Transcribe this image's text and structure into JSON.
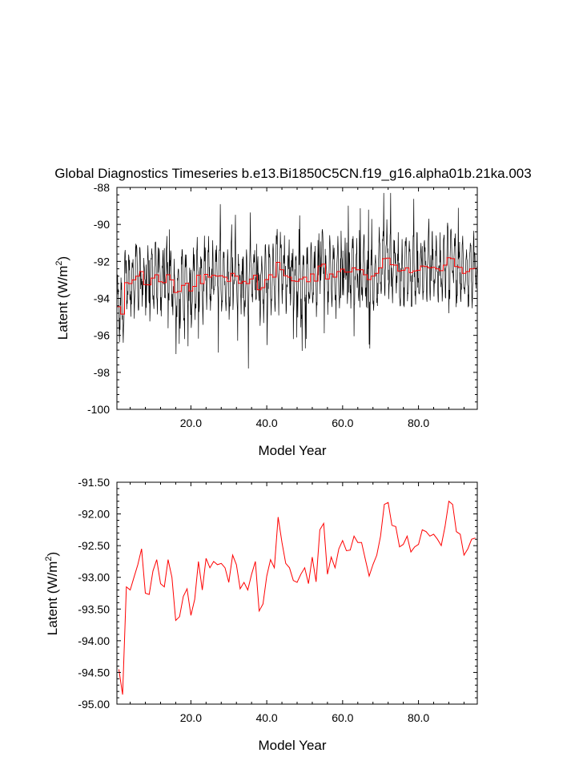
{
  "title": "Global Diagnostics Timeseries b.e13.Bi1850C5CN.f19_g16.alpha01b.21ka.003",
  "colors": {
    "monthly": "#000000",
    "annual": "#ff0000",
    "axes": "#000000"
  },
  "chart_data": [
    {
      "type": "line",
      "name": "monthly-and-annual",
      "title": "Global Diagnostics Timeseries b.e13.Bi1850C5CN.f19_g16.alpha01b.21ka.003",
      "xlabel": "Model Year",
      "ylabel_main": "Latent (W/m",
      "ylabel_sup": "2",
      "ylabel_end": ")",
      "xlim": [
        0.5,
        95.5
      ],
      "ylim": [
        -100,
        -88
      ],
      "xticks": [
        20,
        40,
        60,
        80
      ],
      "xtick_labels": [
        "20.0",
        "40.0",
        "60.0",
        "80.0"
      ],
      "yticks": [
        -88,
        -90,
        -92,
        -94,
        -96,
        -98,
        -100
      ],
      "ytick_labels": [
        "-88",
        "-90",
        "-92",
        "-94",
        "-96",
        "-98",
        "-100"
      ],
      "series": [
        {
          "name": "monthly",
          "color": "#000000",
          "note": "dense monthly oscillation, range approx -98.5 to -88.3, annual envelope amplitude ~1.4"
        },
        {
          "name": "annual",
          "color": "#ff0000"
        }
      ]
    },
    {
      "type": "line",
      "name": "annual-mean",
      "xlabel": "Model Year",
      "ylabel_main": "Latent (W/m",
      "ylabel_sup": "2",
      "ylabel_end": ")",
      "xlim": [
        0.5,
        95.5
      ],
      "ylim": [
        -95.0,
        -91.5
      ],
      "xticks": [
        20,
        40,
        60,
        80
      ],
      "xtick_labels": [
        "20.0",
        "40.0",
        "60.0",
        "80.0"
      ],
      "yticks": [
        -91.5,
        -92.0,
        -92.5,
        -93.0,
        -93.5,
        -94.0,
        -94.5,
        -95.0
      ],
      "ytick_labels": [
        "-91.50",
        "-92.00",
        "-92.50",
        "-93.00",
        "-93.50",
        "-94.00",
        "-94.50",
        "-95.00"
      ],
      "series": [
        {
          "name": "annual",
          "color": "#ff0000",
          "x": [
            1,
            2,
            3,
            4,
            5,
            6,
            7,
            8,
            9,
            10,
            11,
            12,
            13,
            14,
            15,
            16,
            17,
            18,
            19,
            20,
            21,
            22,
            23,
            24,
            25,
            26,
            27,
            28,
            29,
            30,
            31,
            32,
            33,
            34,
            35,
            36,
            37,
            38,
            39,
            40,
            41,
            42,
            43,
            44,
            45,
            46,
            47,
            48,
            49,
            50,
            51,
            52,
            53,
            54,
            55,
            56,
            57,
            58,
            59,
            60,
            61,
            62,
            63,
            64,
            65,
            66,
            67,
            68,
            69,
            70,
            71,
            72,
            73,
            74,
            75,
            76,
            77,
            78,
            79,
            80,
            81,
            82,
            83,
            84,
            85,
            86,
            87,
            88,
            89,
            90,
            91,
            92,
            93,
            94,
            95
          ],
          "values": [
            -94.45,
            -94.85,
            -93.15,
            -93.2,
            -93.0,
            -92.8,
            -92.55,
            -93.25,
            -93.27,
            -92.9,
            -92.72,
            -93.1,
            -93.15,
            -92.72,
            -93.0,
            -93.68,
            -93.62,
            -93.3,
            -93.18,
            -93.6,
            -93.35,
            -92.75,
            -93.2,
            -92.7,
            -92.85,
            -92.75,
            -92.8,
            -92.78,
            -92.85,
            -93.08,
            -92.65,
            -92.8,
            -93.18,
            -93.08,
            -93.2,
            -92.95,
            -92.75,
            -93.53,
            -93.42,
            -92.98,
            -92.72,
            -92.85,
            -92.05,
            -92.45,
            -92.78,
            -92.85,
            -93.05,
            -93.08,
            -92.95,
            -92.85,
            -93.1,
            -92.68,
            -93.07,
            -92.25,
            -92.15,
            -92.95,
            -92.68,
            -92.85,
            -92.55,
            -92.42,
            -92.58,
            -92.57,
            -92.35,
            -92.45,
            -92.45,
            -92.72,
            -92.98,
            -92.8,
            -92.65,
            -92.35,
            -91.85,
            -91.82,
            -92.18,
            -92.2,
            -92.52,
            -92.48,
            -92.35,
            -92.6,
            -92.52,
            -92.48,
            -92.25,
            -92.28,
            -92.35,
            -92.32,
            -92.4,
            -92.5,
            -92.2,
            -91.8,
            -91.85,
            -92.28,
            -92.32,
            -92.65,
            -92.55,
            -92.4,
            -92.38
          ]
        }
      ]
    }
  ]
}
